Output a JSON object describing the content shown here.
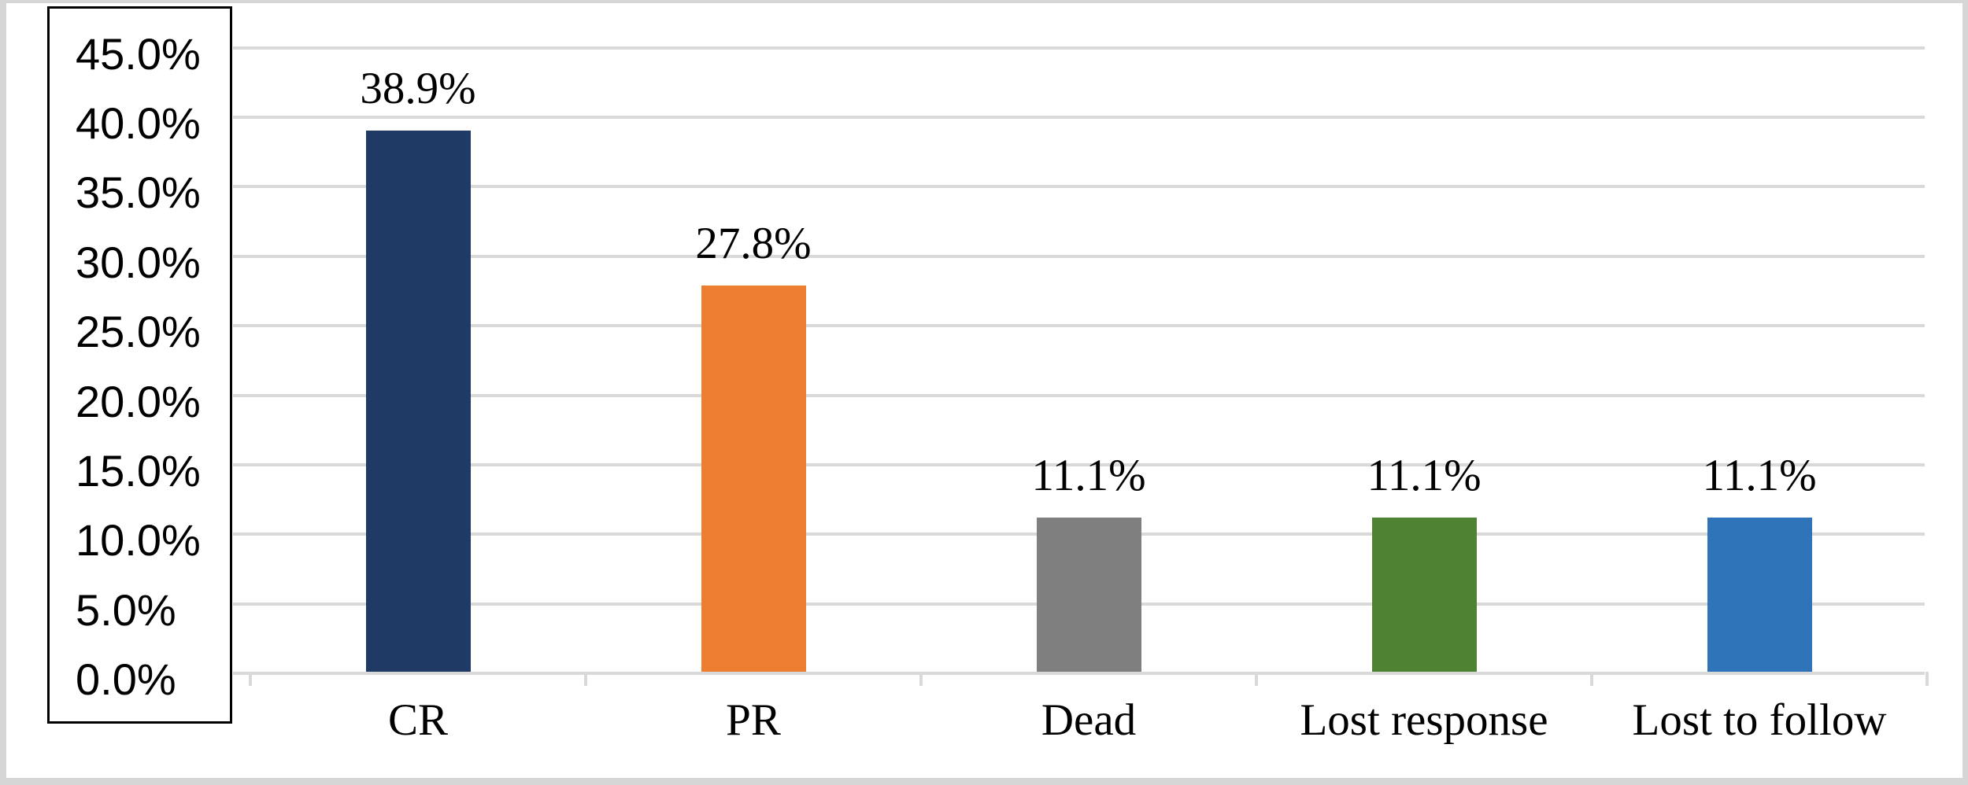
{
  "figure": {
    "background": "#ffffff",
    "frame_color": "#d6d6d6",
    "gridline_color": "#d9d9d9",
    "ybox_border_color": "#000000",
    "text_color": "#000000"
  },
  "chart_data": {
    "type": "bar",
    "title": "",
    "xlabel": "",
    "ylabel": "",
    "categories": [
      "CR",
      "PR",
      "Dead",
      "Lost response",
      "Lost to follow"
    ],
    "values": [
      38.9,
      27.8,
      11.1,
      11.1,
      11.1
    ],
    "value_labels": [
      "38.9%",
      "27.8%",
      "11.1%",
      "11.1%",
      "11.1%"
    ],
    "bar_colors": [
      "#1f3a64",
      "#ed7d31",
      "#7f7f7f",
      "#4f8232",
      "#2f73b8"
    ],
    "y_axis": {
      "min": 0,
      "max": 45,
      "step": 5,
      "tick_labels": [
        "45.0%",
        "40.0%",
        "35.0%",
        "30.0%",
        "25.0%",
        "20.0%",
        "15.0%",
        "10.0%",
        "5.0%",
        "0.0%"
      ]
    },
    "grid": true,
    "legend": null
  }
}
